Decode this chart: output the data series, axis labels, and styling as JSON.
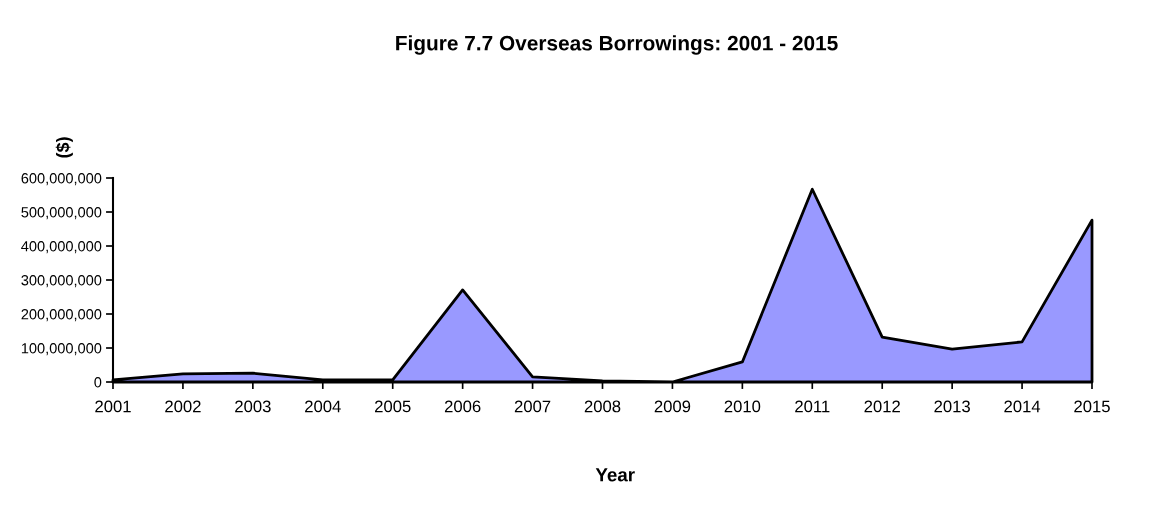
{
  "chart_data": {
    "type": "area",
    "title": "Figure 7.7 Overseas Borrowings: 2001 - 2015",
    "xlabel": "Year",
    "ylabel": "($)",
    "categories": [
      "2001",
      "2002",
      "2003",
      "2004",
      "2005",
      "2006",
      "2007",
      "2008",
      "2009",
      "2010",
      "2011",
      "2012",
      "2013",
      "2014",
      "2015"
    ],
    "values": [
      6000000,
      24000000,
      26000000,
      6000000,
      6000000,
      271000000,
      15000000,
      3000000,
      0,
      59000000,
      567000000,
      132000000,
      97000000,
      118000000,
      476000000
    ],
    "color": "#9999ff",
    "ylim": [
      0,
      600000000
    ],
    "yticks": [
      {
        "value": 0,
        "label": "0"
      },
      {
        "value": 100000000,
        "label": "100,000,000"
      },
      {
        "value": 200000000,
        "label": "200,000,000"
      },
      {
        "value": 300000000,
        "label": "300,000,000"
      },
      {
        "value": 400000000,
        "label": "400,000,000"
      },
      {
        "value": 500000000,
        "label": "500,000,000"
      },
      {
        "value": 600000000,
        "label": "600,000,000"
      }
    ]
  }
}
